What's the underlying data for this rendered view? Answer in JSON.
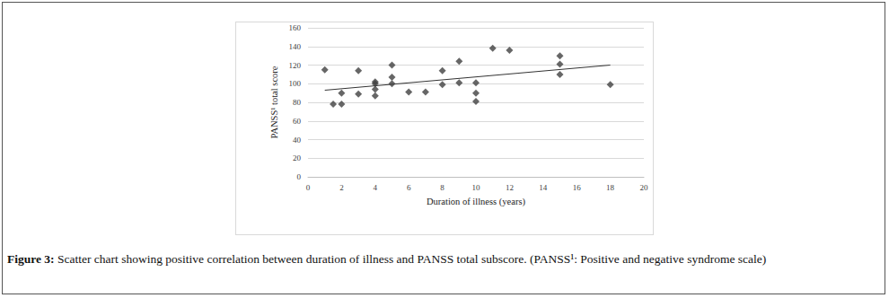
{
  "chart_data": {
    "type": "scatter",
    "x_label": "Duration of illness (years)",
    "y_label": "PANSS¹ total score",
    "x": [
      1,
      1.5,
      2,
      2,
      3,
      3,
      4,
      4,
      4,
      4,
      5,
      5,
      5,
      6,
      7,
      8,
      8,
      9,
      9,
      10,
      10,
      10,
      11,
      12,
      15,
      15,
      15,
      18
    ],
    "values": [
      115,
      78,
      90,
      78,
      114,
      89,
      102,
      100,
      94,
      87,
      120,
      107,
      100,
      91,
      91,
      114,
      99,
      124,
      101,
      101,
      90,
      81,
      138,
      136,
      130,
      121,
      110,
      99
    ],
    "trend_line": {
      "x": [
        1,
        18
      ],
      "values": [
        93,
        120
      ]
    },
    "color": "#404040",
    "marker": "diamond",
    "xlim": [
      0,
      20
    ],
    "xticks": [
      0,
      2,
      4,
      6,
      8,
      10,
      12,
      14,
      16,
      18,
      20
    ],
    "ylim": [
      0,
      160
    ],
    "yticks": [
      0,
      20,
      40,
      60,
      80,
      100,
      120,
      140,
      160
    ],
    "grid": true,
    "caption": {
      "label": "Figure 3:",
      "text": "Scatter chart showing positive correlation between duration of illness and PANSS total subscore.     (PANSS¹: Positive and negative syndrome scale)"
    }
  }
}
